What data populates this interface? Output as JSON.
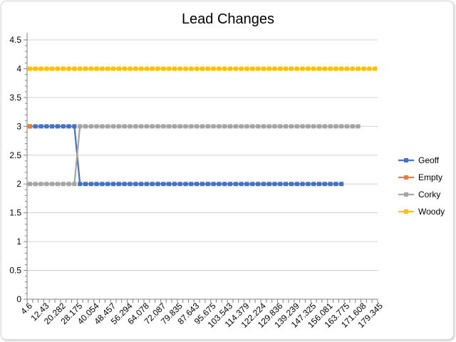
{
  "chart_data": {
    "type": "line",
    "title": "Lead Changes",
    "xlabel": "",
    "ylabel": "",
    "ylim": [
      0,
      4.5
    ],
    "y_ticks": [
      "0",
      "0.5",
      "1",
      "1.5",
      "2",
      "2.5",
      "3",
      "3.5",
      "4",
      "4.5"
    ],
    "x_count": 63,
    "x_tick_labels": [
      "4.6",
      "12.43",
      "20.282",
      "28.175",
      "40.054",
      "48.457",
      "56.294",
      "64.078",
      "72.087",
      "79.835",
      "87.643",
      "95.675",
      "103.543",
      "114.379",
      "122.224",
      "129.836",
      "139.239",
      "147.325",
      "156.081",
      "163.775",
      "171.608",
      "179.345"
    ],
    "grid": true,
    "legend_position": "right",
    "series": [
      {
        "name": "Geoff",
        "color": "#4472C4",
        "values": [
          3,
          3,
          3,
          3,
          3,
          3,
          3,
          3,
          3,
          2,
          2,
          2,
          2,
          2,
          2,
          2,
          2,
          2,
          2,
          2,
          2,
          2,
          2,
          2,
          2,
          2,
          2,
          2,
          2,
          2,
          2,
          2,
          2,
          2,
          2,
          2,
          2,
          2,
          2,
          2,
          2,
          2,
          2,
          2,
          2,
          2,
          2,
          2,
          2,
          2,
          2,
          2,
          2,
          2,
          2,
          2,
          2
        ]
      },
      {
        "name": "Empty",
        "color": "#ED7D31",
        "values": [
          3
        ]
      },
      {
        "name": "Corky",
        "color": "#A5A5A5",
        "values": [
          2,
          2,
          2,
          2,
          2,
          2,
          2,
          2,
          2,
          3,
          3,
          3,
          3,
          3,
          3,
          3,
          3,
          3,
          3,
          3,
          3,
          3,
          3,
          3,
          3,
          3,
          3,
          3,
          3,
          3,
          3,
          3,
          3,
          3,
          3,
          3,
          3,
          3,
          3,
          3,
          3,
          3,
          3,
          3,
          3,
          3,
          3,
          3,
          3,
          3,
          3,
          3,
          3,
          3,
          3,
          3,
          3,
          3,
          3,
          3
        ]
      },
      {
        "name": "Woody",
        "color": "#FFC000",
        "values": [
          4,
          4,
          4,
          4,
          4,
          4,
          4,
          4,
          4,
          4,
          4,
          4,
          4,
          4,
          4,
          4,
          4,
          4,
          4,
          4,
          4,
          4,
          4,
          4,
          4,
          4,
          4,
          4,
          4,
          4,
          4,
          4,
          4,
          4,
          4,
          4,
          4,
          4,
          4,
          4,
          4,
          4,
          4,
          4,
          4,
          4,
          4,
          4,
          4,
          4,
          4,
          4,
          4,
          4,
          4,
          4,
          4,
          4,
          4,
          4,
          4,
          4,
          4
        ]
      }
    ]
  }
}
